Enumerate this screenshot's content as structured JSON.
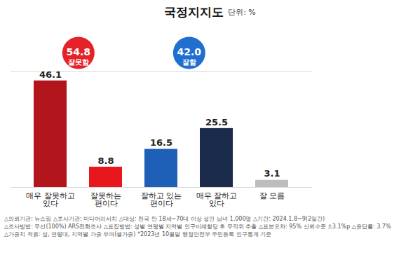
{
  "chart_data": {
    "type": "bar",
    "title": "국정지지도",
    "subtitle": "단위: %",
    "categories": [
      "매우 잘못하고\n있다",
      "잘못하는\n편이다",
      "잘하고 있는\n편이다",
      "매우 잘하고\n있다",
      "잘 모름"
    ],
    "values": [
      46.1,
      8.8,
      16.5,
      25.5,
      3.1
    ],
    "colors": [
      "#b3151d",
      "#e8161d",
      "#1e5fb7",
      "#1b2b4b",
      "#bdbdbd"
    ],
    "ylim": [
      0,
      50
    ],
    "yticks": [
      0,
      50
    ],
    "grid": true,
    "tick_labels": "x",
    "data_labels": true,
    "annotations": [
      {
        "text": "54.8",
        "label": "잘못함",
        "color": "#e42229"
      },
      {
        "text": "42.0",
        "label": "잘함",
        "color": "#1f6ed0"
      }
    ],
    "notes": [
      "△의뢰기관: 뉴스핌 △조사기관: 미디어리서치 △대상: 전국 만 18세~70대 이상 성인 남녀 1,000명 △기간: 2024.1.8~9(2일간)",
      "△조사방법: 무선(100%) ARS전화조사 △표집방법: 성별 연령별 지역별 인구비례할당 후 무작위 추출 △표본오차: 95% 신뢰수준 ±3.1%p △응답률: 3.7%",
      "△가중치 적용: 성, 연령대, 지역별 가중 부여(셀가중) *2023년 10월말 행정안전부 주민등록 인구통계 기준"
    ]
  }
}
